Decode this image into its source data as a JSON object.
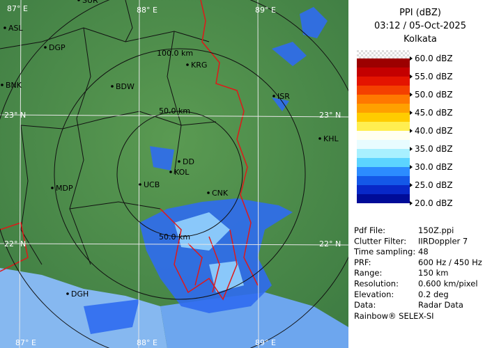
{
  "title": "PPI (dBZ)",
  "datetime": "03:12 / 05-Oct-2025",
  "station": "Kolkata",
  "legend": [
    {
      "label": "60.0 dBZ",
      "colors": [
        "#9c0000",
        "#c40000"
      ]
    },
    {
      "label": "55.0 dBZ",
      "colors": [
        "#e41400",
        "#f44000"
      ]
    },
    {
      "label": "50.0 dBZ",
      "colors": [
        "#ff7800",
        "#ffa000"
      ]
    },
    {
      "label": "45.0 dBZ",
      "colors": [
        "#ffcc00",
        "#ffee50"
      ]
    },
    {
      "label": "40.0 dBZ",
      "colors": [
        "#fffff0",
        "#e8fcff"
      ]
    },
    {
      "label": "35.0 dBZ",
      "colors": [
        "#a8f0ff",
        "#5cd4ff"
      ]
    },
    {
      "label": "30.0 dBZ",
      "colors": [
        "#2c8cff",
        "#1458e8"
      ]
    },
    {
      "label": "25.0 dBZ",
      "colors": [
        "#0828c8",
        "#000c98"
      ]
    },
    {
      "label": "20.0 dBZ",
      "colors": []
    }
  ],
  "info": [
    {
      "key": "Pdf File:",
      "value": "150Z.ppi"
    },
    {
      "key": "Clutter Filter:",
      "value": "IIRDoppler 7"
    },
    {
      "key": "Time sampling:",
      "value": "48"
    },
    {
      "key": "PRF:",
      "value": "600 Hz / 450 Hz"
    },
    {
      "key": "Range:",
      "value": "150 km"
    },
    {
      "key": "Resolution:",
      "value": "0.600 km/pixel"
    },
    {
      "key": "Elevation:",
      "value": "0.2 deg"
    },
    {
      "key": "Data:",
      "value": "Radar Data"
    }
  ],
  "footer": "Rainbow® SELEX-SI",
  "map": {
    "grid_labels": [
      "87° E",
      "88° E",
      "89° E",
      "23° N",
      "22° N",
      "23° N",
      "22° N",
      "87° E",
      "88° E",
      "89° E"
    ],
    "ring_labels": [
      "100.0 km",
      "50.0 km",
      "50.0 km"
    ],
    "cities": [
      "SUR",
      "ASL",
      "DGP",
      "KRG",
      "BNK",
      "BDW",
      "ISR",
      "KHL",
      "DD",
      "KOL",
      "UCB",
      "CNK",
      "MDP",
      "DGH"
    ]
  }
}
